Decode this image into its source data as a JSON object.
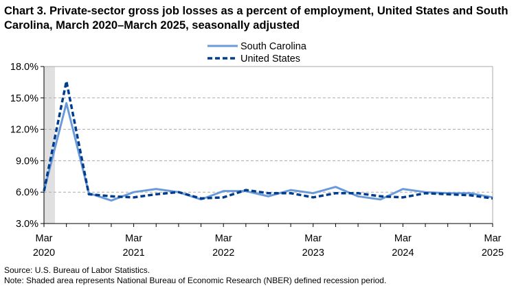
{
  "chart_data": {
    "type": "line",
    "title": "Chart 3. Private-sector gross job losses as a percent of employment, United States and South Carolina, March 2020–March 2025, seasonally adjusted",
    "x": [
      "Mar 2020",
      "Jun 2020",
      "Sep 2020",
      "Dec 2020",
      "Mar 2021",
      "Jun 2021",
      "Sep 2021",
      "Dec 2021",
      "Mar 2022",
      "Jun 2022",
      "Sep 2022",
      "Dec 2022",
      "Mar 2023",
      "Jun 2023",
      "Sep 2023",
      "Dec 2023",
      "Mar 2024",
      "Jun 2024",
      "Sep 2024",
      "Dec 2024",
      "Mar 2025"
    ],
    "x_tick_labels": [
      [
        "Mar",
        "2020"
      ],
      [
        "Mar",
        "2021"
      ],
      [
        "Mar",
        "2022"
      ],
      [
        "Mar",
        "2023"
      ],
      [
        "Mar",
        "2024"
      ],
      [
        "Mar",
        "2025"
      ]
    ],
    "y_tick_labels": [
      "3.0%",
      "6.0%",
      "9.0%",
      "12.0%",
      "15.0%",
      "18.0%"
    ],
    "ylim": [
      3,
      18
    ],
    "grid": "horizontal dashed",
    "legend_placement": "top-center",
    "recession_shading": {
      "from": "Mar 2020",
      "to": "Apr 2020",
      "color": "#e0e0e0"
    },
    "series": [
      {
        "name": "South Carolina",
        "color": "#6a9ad9",
        "style": "solid",
        "values": [
          6.1,
          14.5,
          5.9,
          5.2,
          6.0,
          6.3,
          6.0,
          5.3,
          6.1,
          6.1,
          5.6,
          6.2,
          5.9,
          6.5,
          5.6,
          5.3,
          6.3,
          6.0,
          5.9,
          5.9,
          5.5
        ]
      },
      {
        "name": "United States",
        "color": "#003d8f",
        "style": "dashed",
        "values": [
          6.1,
          16.6,
          5.8,
          5.6,
          5.5,
          5.8,
          6.0,
          5.4,
          5.5,
          6.2,
          5.9,
          5.9,
          5.5,
          5.9,
          5.9,
          5.6,
          5.5,
          5.9,
          5.8,
          5.7,
          5.4
        ]
      }
    ]
  },
  "footer": {
    "source": "Source: U.S. Bureau of Labor Statistics.",
    "note": "Note: Shaded area represents National Bureau of Economic Research (NBER) defined  recession period."
  }
}
